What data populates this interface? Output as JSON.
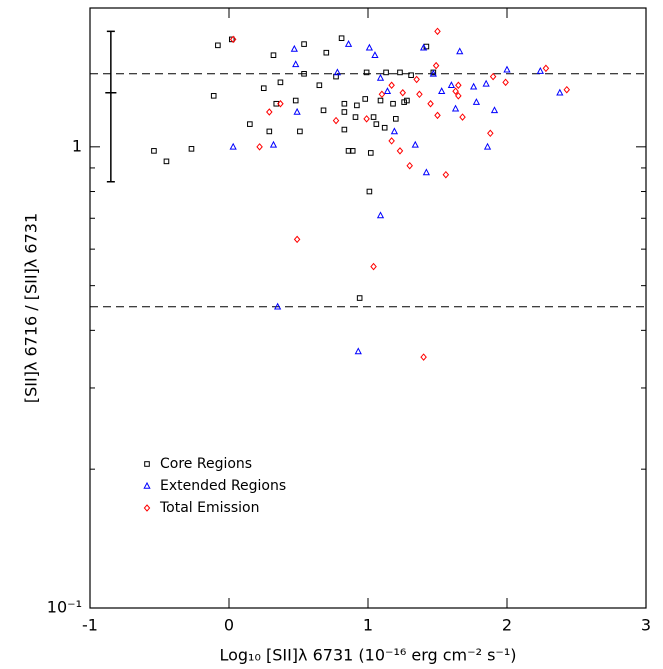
{
  "chart_data": {
    "type": "scatter",
    "x_label": "Log₁₀ [SII]λ 6731 (10⁻¹⁶ erg cm⁻² s⁻¹)",
    "y_label": "[SII]λ 6716 / [SII]λ 6731",
    "xlim": [
      -1,
      3
    ],
    "ylim": [
      0.1,
      2.0
    ],
    "y_log": true,
    "xticks": [
      -1,
      0,
      1,
      2,
      3
    ],
    "yticks": [
      {
        "value": 0.1,
        "label": "10⁻¹"
      },
      1
    ],
    "yminor_ticks": [
      0.2,
      0.3,
      0.4,
      0.5,
      0.6,
      0.7,
      0.8,
      0.9,
      2
    ],
    "hlines": [
      1.44,
      0.45
    ],
    "error_bar": {
      "x": -0.85,
      "y": 1.31,
      "ylow": 0.84,
      "yhigh": 1.78,
      "xerr": 0.04
    },
    "legend": "lower left",
    "series": [
      {
        "name": "Core Regions",
        "color": "#000000",
        "marker": "square",
        "x": [
          -0.54,
          -0.45,
          -0.27,
          -0.08,
          -0.11,
          0.15,
          0.02,
          0.25,
          0.32,
          0.29,
          0.34,
          0.37,
          0.48,
          0.51,
          0.54,
          0.54,
          0.65,
          0.68,
          0.7,
          0.81,
          0.77,
          0.83,
          0.83,
          0.83,
          0.86,
          0.89,
          0.91,
          0.92,
          0.98,
          0.99,
          1.02,
          1.01,
          1.04,
          1.06,
          1.09,
          1.12,
          1.13,
          1.18,
          1.2,
          1.23,
          1.26,
          1.28,
          1.31,
          1.42,
          1.47,
          0.94
        ],
        "values": [
          0.98,
          0.93,
          0.99,
          1.66,
          1.29,
          1.12,
          1.71,
          1.34,
          1.58,
          1.08,
          1.24,
          1.38,
          1.26,
          1.08,
          1.44,
          1.67,
          1.36,
          1.2,
          1.6,
          1.72,
          1.42,
          1.24,
          1.19,
          1.09,
          0.98,
          0.98,
          1.16,
          1.23,
          1.27,
          1.45,
          0.97,
          0.8,
          1.16,
          1.12,
          1.26,
          1.1,
          1.45,
          1.24,
          1.15,
          1.45,
          1.25,
          1.26,
          1.43,
          1.65,
          1.45,
          0.47
        ]
      },
      {
        "name": "Extended Regions",
        "color": "#0000ff",
        "marker": "triangle",
        "x": [
          0.03,
          0.32,
          0.35,
          0.48,
          0.49,
          0.47,
          0.78,
          0.86,
          0.93,
          1.01,
          1.05,
          1.09,
          1.09,
          1.14,
          1.19,
          1.34,
          1.4,
          1.42,
          1.47,
          1.53,
          1.66,
          1.63,
          1.76,
          1.78,
          1.85,
          1.86,
          2.0,
          1.91,
          2.24,
          2.38,
          1.6
        ],
        "values": [
          1.0,
          1.01,
          0.45,
          1.51,
          1.19,
          1.63,
          1.45,
          1.67,
          0.36,
          1.64,
          1.58,
          1.41,
          0.71,
          1.32,
          1.08,
          1.01,
          1.64,
          0.88,
          1.44,
          1.32,
          1.61,
          1.21,
          1.35,
          1.25,
          1.37,
          1.0,
          1.47,
          1.2,
          1.46,
          1.31,
          1.36
        ]
      },
      {
        "name": "Total Emission",
        "color": "#ff0000",
        "marker": "diamond",
        "x": [
          0.03,
          0.22,
          0.37,
          0.49,
          0.29,
          0.77,
          1.04,
          1.17,
          1.23,
          1.3,
          1.4,
          1.5,
          1.56,
          1.17,
          1.25,
          1.35,
          1.37,
          1.45,
          1.5,
          1.49,
          1.63,
          1.65,
          1.65,
          1.68,
          1.88,
          1.9,
          1.99,
          2.28,
          2.43,
          0.99,
          1.1
        ],
        "values": [
          1.71,
          1.0,
          1.24,
          0.63,
          1.19,
          1.14,
          0.55,
          1.03,
          0.98,
          0.91,
          0.35,
          1.78,
          0.87,
          1.36,
          1.31,
          1.4,
          1.3,
          1.24,
          1.17,
          1.5,
          1.32,
          1.36,
          1.29,
          1.16,
          1.07,
          1.42,
          1.38,
          1.48,
          1.33,
          1.15,
          1.3
        ]
      }
    ]
  }
}
